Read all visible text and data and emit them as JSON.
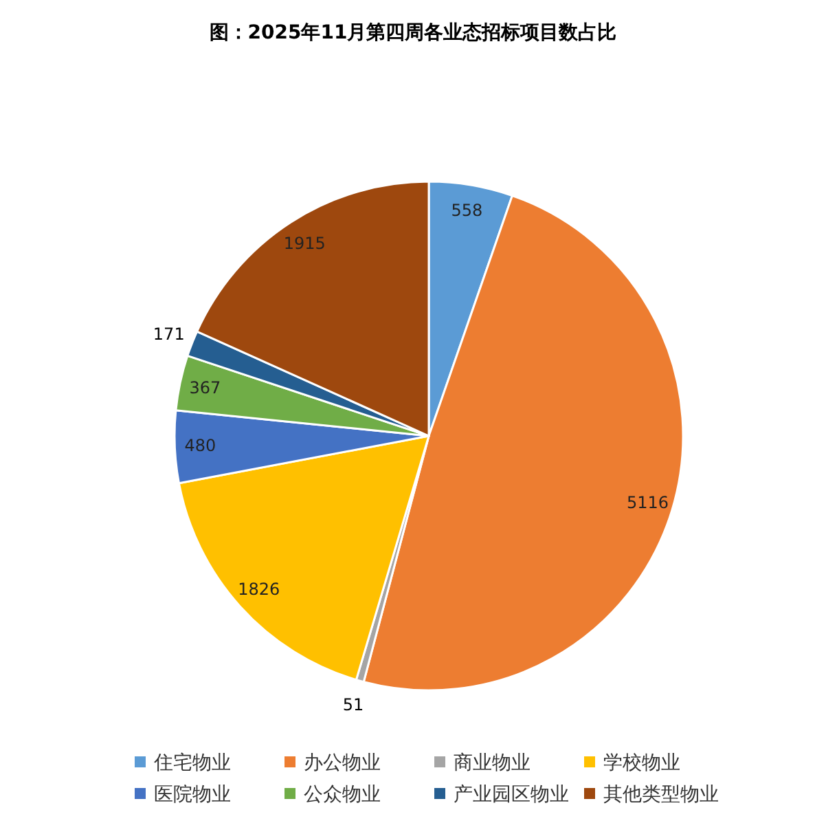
{
  "chart_data": {
    "type": "pie",
    "title": "图：2025年11月第四周各业态招标项目数占比",
    "categories": [
      "住宅物业",
      "办公物业",
      "商业物业",
      "学校物业",
      "医院物业",
      "公众物业",
      "产业园区物业",
      "其他类型物业"
    ],
    "values": [
      558,
      5116,
      51,
      1826,
      480,
      367,
      171,
      1915
    ],
    "colors": [
      "#5b9bd5",
      "#ed7d31",
      "#a5a5a5",
      "#ffc000",
      "#4472c4",
      "#70ad47",
      "#255e91",
      "#9e480e"
    ],
    "data_labels": true,
    "legend": "bottom"
  }
}
